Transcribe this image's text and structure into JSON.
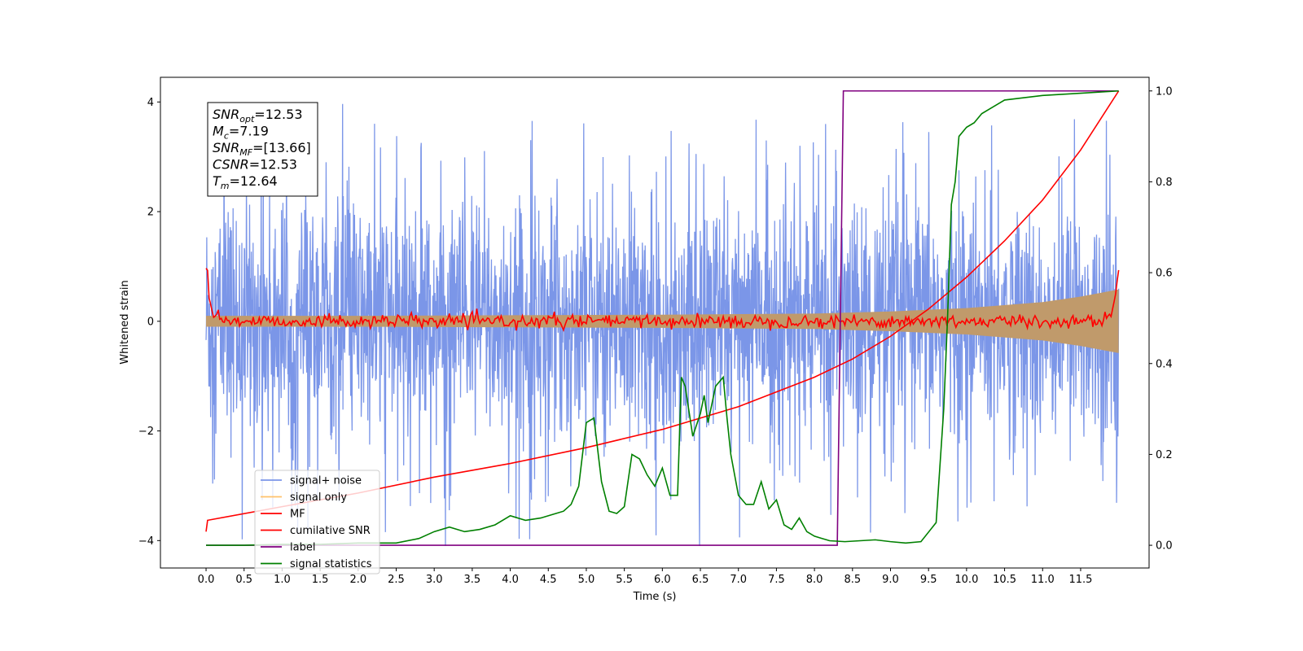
{
  "chart_data": {
    "type": "line",
    "xlabel": "Time (s)",
    "ylabel": "Whitened strain",
    "xlim": [
      -0.6,
      12.4
    ],
    "ylim": [
      -4.5,
      4.45
    ],
    "ylim_right": [
      -0.05,
      1.03
    ],
    "x_ticks": [
      0.0,
      0.5,
      1.0,
      1.5,
      2.0,
      2.5,
      3.0,
      3.5,
      4.0,
      4.5,
      5.0,
      5.5,
      6.0,
      6.5,
      7.0,
      7.5,
      8.0,
      8.5,
      9.0,
      9.5,
      10.0,
      10.5,
      11.0,
      11.5
    ],
    "x_tick_labels": [
      "0.0",
      "0.5",
      "1.0",
      "1.5",
      "2.0",
      "2.5",
      "3.0",
      "3.5",
      "4.0",
      "4.5",
      "5.0",
      "5.5",
      "6.0",
      "6.5",
      "7.0",
      "7.5",
      "8.0",
      "8.5",
      "9.0",
      "9.5",
      "10.0",
      "10.5",
      "11.0",
      "11.5"
    ],
    "y_ticks": [
      -4,
      -2,
      0,
      2,
      4
    ],
    "y_tick_labels": [
      "−4",
      "−2",
      "0",
      "2",
      "4"
    ],
    "y2_ticks": [
      0.0,
      0.2,
      0.4,
      0.6,
      0.8,
      1.0
    ],
    "y2_tick_labels": [
      "0.0",
      "0.2",
      "0.4",
      "0.6",
      "0.8",
      "1.0"
    ],
    "annotation_box": [
      {
        "base": "SNR",
        "sub": "opt",
        "rest": "=12.53"
      },
      {
        "base": "M",
        "sub": "c",
        "rest": "=7.19"
      },
      {
        "base": "SNR",
        "sub": "MF",
        "rest": "=[13.66]"
      },
      {
        "base": "CSNR",
        "sub": "",
        "rest": "=12.53"
      },
      {
        "base": "T",
        "sub": "m",
        "rest": "=12.64"
      }
    ],
    "legend": [
      {
        "label": "signal+ noise",
        "color": "#7b96e8"
      },
      {
        "label": "signal only",
        "color": "#ffc26b"
      },
      {
        "label": "MF",
        "color": "#ff0000"
      },
      {
        "label": "cumilative SNR",
        "color": "#ff0000"
      },
      {
        "label": "label",
        "color": "#800080"
      },
      {
        "label": "signal statistics",
        "color": "#008000"
      }
    ],
    "legend_position": "lower-left",
    "series": [
      {
        "name": "signal+ noise",
        "color": "#7b96e8",
        "axis": "left",
        "description_type": "noise_band",
        "x_range": [
          0.0,
          12.0
        ],
        "envelope": [
          -2.0,
          2.0
        ],
        "peak_max": 4.0,
        "peak_min": -4.1
      },
      {
        "name": "signal only",
        "color": "#c09a6b",
        "axis": "left",
        "x": [
          0.0,
          2.0,
          4.0,
          6.0,
          8.0,
          9.0,
          10.0,
          11.0,
          11.5,
          12.0
        ],
        "upper": [
          0.1,
          0.1,
          0.11,
          0.12,
          0.14,
          0.18,
          0.24,
          0.35,
          0.45,
          0.58
        ],
        "lower": [
          -0.1,
          -0.1,
          -0.11,
          -0.12,
          -0.14,
          -0.18,
          -0.24,
          -0.35,
          -0.45,
          -0.58
        ]
      },
      {
        "name": "MF",
        "color": "#ff0000",
        "axis": "left",
        "x": [
          0.0,
          0.02,
          0.05,
          0.1,
          0.2,
          0.3,
          11.7,
          11.9,
          11.97,
          12.0
        ],
        "y": [
          1.0,
          0.9,
          0.3,
          0.1,
          0.05,
          0.0,
          0.0,
          0.1,
          0.6,
          1.0
        ],
        "jitter": 0.06
      },
      {
        "name": "cumilative SNR",
        "color": "#ff0000",
        "axis": "right",
        "x": [
          0.0,
          0.02,
          1.0,
          2.0,
          3.0,
          4.0,
          5.0,
          6.0,
          7.0,
          8.0,
          8.5,
          9.0,
          9.5,
          10.0,
          10.5,
          11.0,
          11.5,
          12.0
        ],
        "y": [
          0.03,
          0.055,
          0.085,
          0.115,
          0.15,
          0.18,
          0.215,
          0.255,
          0.305,
          0.37,
          0.41,
          0.46,
          0.52,
          0.59,
          0.67,
          0.76,
          0.87,
          1.0
        ]
      },
      {
        "name": "label",
        "color": "#800080",
        "axis": "right",
        "x": [
          0.0,
          8.3,
          8.38,
          12.0
        ],
        "y": [
          0.0,
          0.0,
          1.0,
          1.0
        ]
      },
      {
        "name": "signal statistics",
        "color": "#008000",
        "axis": "right",
        "x": [
          0.0,
          0.5,
          1.0,
          1.5,
          2.0,
          2.5,
          2.8,
          3.0,
          3.2,
          3.4,
          3.6,
          3.8,
          4.0,
          4.2,
          4.4,
          4.6,
          4.7,
          4.8,
          4.9,
          5.0,
          5.1,
          5.2,
          5.3,
          5.4,
          5.5,
          5.6,
          5.7,
          5.8,
          5.9,
          6.0,
          6.1,
          6.2,
          6.25,
          6.3,
          6.4,
          6.5,
          6.55,
          6.6,
          6.7,
          6.8,
          6.85,
          6.9,
          7.0,
          7.1,
          7.2,
          7.3,
          7.4,
          7.5,
          7.6,
          7.7,
          7.8,
          7.9,
          8.0,
          8.1,
          8.2,
          8.4,
          8.6,
          8.8,
          9.0,
          9.2,
          9.4,
          9.6,
          9.7,
          9.75,
          9.8,
          9.85,
          9.9,
          10.0,
          10.1,
          10.2,
          10.3,
          10.5,
          11.0,
          11.5,
          12.0
        ],
        "y": [
          0.0,
          0.0,
          0.002,
          0.002,
          0.005,
          0.005,
          0.015,
          0.03,
          0.04,
          0.03,
          0.035,
          0.045,
          0.065,
          0.055,
          0.06,
          0.07,
          0.075,
          0.09,
          0.13,
          0.27,
          0.28,
          0.14,
          0.075,
          0.07,
          0.085,
          0.2,
          0.19,
          0.155,
          0.13,
          0.17,
          0.11,
          0.11,
          0.37,
          0.35,
          0.24,
          0.29,
          0.33,
          0.27,
          0.35,
          0.37,
          0.28,
          0.2,
          0.11,
          0.09,
          0.09,
          0.14,
          0.08,
          0.1,
          0.045,
          0.035,
          0.06,
          0.03,
          0.02,
          0.015,
          0.01,
          0.008,
          0.01,
          0.012,
          0.008,
          0.005,
          0.008,
          0.05,
          0.3,
          0.5,
          0.75,
          0.8,
          0.9,
          0.92,
          0.93,
          0.95,
          0.96,
          0.98,
          0.99,
          0.995,
          1.0
        ]
      }
    ]
  }
}
